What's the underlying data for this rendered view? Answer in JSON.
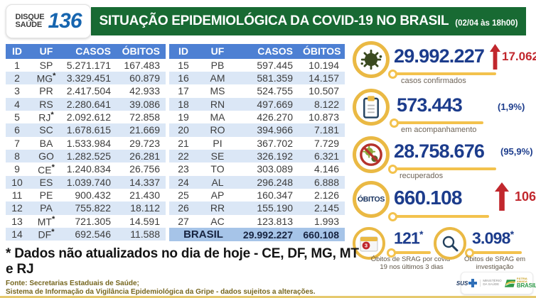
{
  "header": {
    "badge": {
      "line1": "DISQUE",
      "line2": "SAÚDE",
      "number": "136"
    },
    "title": "SITUAÇÃO EPIDEMIOLÓGICA DA COVID-19 NO BRASIL",
    "datetime": "(02/04 às 18h00)"
  },
  "table": {
    "total": {
      "label": "BRASIL",
      "casos": "29.992.227",
      "obitos": "660.108"
    }
  },
  "stats": {
    "confirmed": {
      "value": "29.992.227",
      "delta": "17.062",
      "label": "casos confirmados"
    },
    "monitoring": {
      "value": "573.443",
      "percent": "(1,9%)",
      "label": "em acompanhamento"
    },
    "recovered": {
      "value": "28.758.676",
      "percent": "(95,9%)",
      "label": "recuperados"
    },
    "deaths": {
      "icon_label": "ÓBITOS",
      "value": "660.108",
      "delta": "106"
    },
    "srag_recent": {
      "value": "121",
      "marker": "*",
      "badge": "3",
      "label": "Óbitos de SRAG por covid-19 nos últimos 3 dias"
    },
    "srag_investigation": {
      "value": "3.098",
      "marker": "*",
      "label": "Óbitos de SRAG em investigação"
    }
  },
  "footnote": "* Dados não atualizados no dia de hoje - CE, DF, MG, MT e RJ",
  "source_line1": "Fonte: Secretarias Estaduais de Saúde;",
  "source_line2": "Sistema de Informação da Vigilância Epidemiológica da Gripe - dados sujeitos a alterações.",
  "logos": {
    "sus": "SUS",
    "ministry_line1": "MINISTÉRIO",
    "ministry_line2": "DA SAÚDE",
    "brand_top": "PÁTRIA AMADA",
    "brand": "BRASIL"
  },
  "colors": {
    "header_green": "#186a33",
    "table_header_blue": "#4d80d3",
    "table_alt_row": "#dbe7f6",
    "total_row_blue": "#a6c4e8",
    "number_navy": "#1c3c8c",
    "alert_red": "#c1272d",
    "accent_yellow": "#eab944",
    "badge_blue": "#1665af",
    "source_olive": "#76661f"
  },
  "chart_data": {
    "type": "table",
    "title": "SITUAÇÃO EPIDEMIOLÓGICA DA COVID-19 NO BRASIL (02/04 às 18h00)",
    "columns": [
      "ID",
      "UF",
      "CASOS",
      "ÓBITOS"
    ],
    "rows": [
      [
        "1",
        "SP",
        "5.271.171",
        "167.483"
      ],
      [
        "2",
        "MG*",
        "3.329.451",
        "60.879"
      ],
      [
        "3",
        "PR",
        "2.417.504",
        "42.933"
      ],
      [
        "4",
        "RS",
        "2.280.641",
        "39.086"
      ],
      [
        "5",
        "RJ*",
        "2.092.612",
        "72.858"
      ],
      [
        "6",
        "SC",
        "1.678.615",
        "21.669"
      ],
      [
        "7",
        "BA",
        "1.533.984",
        "29.723"
      ],
      [
        "8",
        "GO",
        "1.282.525",
        "26.281"
      ],
      [
        "9",
        "CE*",
        "1.240.834",
        "26.756"
      ],
      [
        "10",
        "ES",
        "1.039.740",
        "14.337"
      ],
      [
        "11",
        "PE",
        "900.432",
        "21.430"
      ],
      [
        "12",
        "PA",
        "755.822",
        "18.112"
      ],
      [
        "13",
        "MT*",
        "721.305",
        "14.591"
      ],
      [
        "14",
        "DF*",
        "692.546",
        "11.588"
      ],
      [
        "15",
        "PB",
        "597.445",
        "10.194"
      ],
      [
        "16",
        "AM",
        "581.359",
        "14.157"
      ],
      [
        "17",
        "MS",
        "524.755",
        "10.507"
      ],
      [
        "18",
        "RN",
        "497.669",
        "8.122"
      ],
      [
        "19",
        "MA",
        "426.270",
        "10.873"
      ],
      [
        "20",
        "RO",
        "394.966",
        "7.181"
      ],
      [
        "21",
        "PI",
        "367.702",
        "7.729"
      ],
      [
        "22",
        "SE",
        "326.192",
        "6.321"
      ],
      [
        "23",
        "TO",
        "303.089",
        "4.146"
      ],
      [
        "24",
        "AL",
        "296.248",
        "6.888"
      ],
      [
        "25",
        "AP",
        "160.347",
        "2.126"
      ],
      [
        "26",
        "RR",
        "155.190",
        "2.145"
      ],
      [
        "27",
        "AC",
        "123.813",
        "1.993"
      ]
    ],
    "total_row": [
      "BRASIL",
      "29.992.227",
      "660.108"
    ],
    "summary": {
      "casos_confirmados": 29992227,
      "novos_casos": 17062,
      "em_acompanhamento": 573443,
      "em_acompanhamento_pct": "1,9%",
      "recuperados": 28758676,
      "recuperados_pct": "95,9%",
      "obitos": 660108,
      "novos_obitos": 106,
      "obitos_srag_ultimos_3_dias": 121,
      "obitos_srag_em_investigacao": 3098
    }
  }
}
